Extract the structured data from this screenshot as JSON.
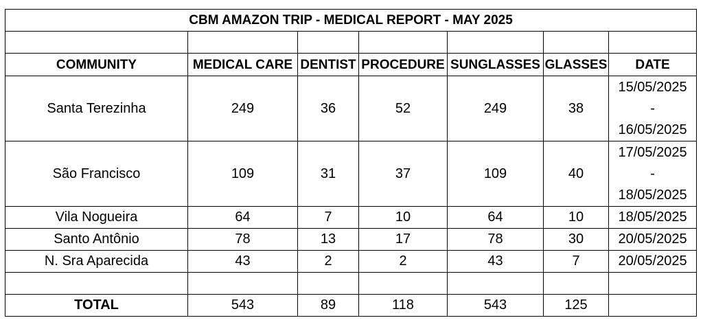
{
  "title": "CBM AMAZON TRIP  - MEDICAL REPORT  - MAY 2025",
  "columns": [
    "COMMUNITY",
    "MEDICAL CARE",
    "DENTIST",
    "PROCEDURE",
    "SUNGLASSES",
    "GLASSES",
    "DATE"
  ],
  "rows": [
    {
      "community": "Santa Terezinha",
      "medical_care": "249",
      "dentist": "36",
      "procedure": "52",
      "sunglasses": "249",
      "glasses": "38",
      "date_start": "15/05/2025",
      "date_sep": "-",
      "date_end": "16/05/2025"
    },
    {
      "community": "São Francisco",
      "medical_care": "109",
      "dentist": "31",
      "procedure": "37",
      "sunglasses": "109",
      "glasses": "40",
      "date_start": "17/05/2025",
      "date_sep": "-",
      "date_end": "18/05/2025"
    },
    {
      "community": "Vila Nogueira",
      "medical_care": "64",
      "dentist": "7",
      "procedure": "10",
      "sunglasses": "64",
      "glasses": "10",
      "date": "18/05/2025"
    },
    {
      "community": "Santo Antônio",
      "medical_care": "78",
      "dentist": "13",
      "procedure": "17",
      "sunglasses": "78",
      "glasses": "30",
      "date": "20/05/2025"
    },
    {
      "community": "N. Sra Aparecida",
      "medical_care": "43",
      "dentist": "2",
      "procedure": "2",
      "sunglasses": "43",
      "glasses": "7",
      "date": "20/05/2025"
    }
  ],
  "total": {
    "label": "TOTAL",
    "medical_care": "543",
    "dentist": "89",
    "procedure": "118",
    "sunglasses": "543",
    "glasses": "125"
  },
  "colors": {
    "border": "#000000",
    "background": "#ffffff",
    "text": "#000000"
  }
}
